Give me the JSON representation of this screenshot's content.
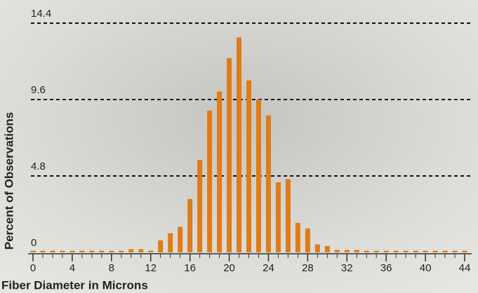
{
  "chart_data": {
    "type": "bar",
    "xlabel": "Fiber Diameter in Microns",
    "ylabel": "Percent of Observations",
    "x": [
      0,
      1,
      2,
      3,
      4,
      5,
      6,
      7,
      8,
      9,
      10,
      11,
      12,
      13,
      14,
      15,
      16,
      17,
      18,
      19,
      20,
      21,
      22,
      23,
      24,
      25,
      26,
      27,
      28,
      29,
      30,
      31,
      32,
      33,
      34,
      35,
      36,
      37,
      38,
      39,
      40,
      41,
      42,
      43,
      44
    ],
    "values": [
      0.1,
      0.1,
      0.1,
      0.1,
      0.1,
      0.1,
      0.1,
      0.1,
      0.1,
      0.1,
      0.2,
      0.2,
      0.1,
      0.75,
      1.2,
      1.6,
      3.35,
      5.8,
      8.9,
      10.1,
      12.2,
      13.5,
      10.8,
      9.6,
      8.6,
      4.4,
      4.6,
      1.85,
      1.5,
      0.5,
      0.4,
      0.15,
      0.15,
      0.15,
      0.1,
      0.1,
      0.1,
      0.1,
      0.1,
      0.1,
      0.1,
      0.1,
      0.1,
      0.1,
      0.1
    ],
    "color": "#e07b16",
    "xlim": [
      0,
      44
    ],
    "xticks": [
      0,
      4,
      8,
      12,
      16,
      20,
      24,
      28,
      32,
      36,
      40,
      44
    ],
    "ylim": [
      0,
      14.4
    ],
    "yticks": [
      0,
      4.8,
      9.6,
      14.4
    ],
    "grid": true
  }
}
